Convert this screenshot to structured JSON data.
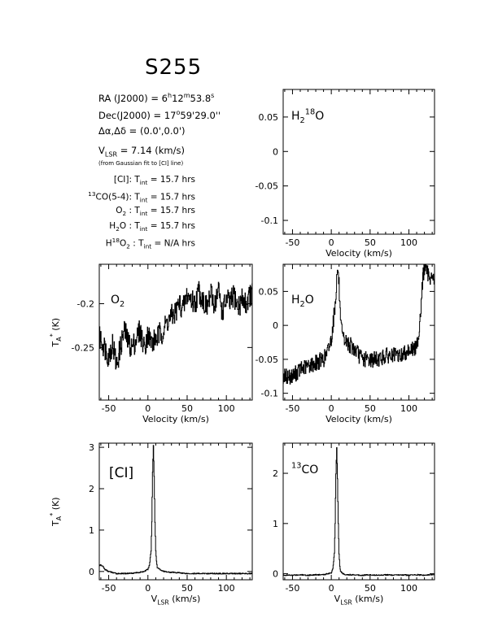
{
  "source": {
    "name": "S255",
    "ra": [
      "RA (J2000) = 6",
      "h",
      "12",
      "m",
      "53.8",
      "s"
    ],
    "dec": [
      "Dec(J2000) = 17",
      "o",
      "59'29.0''"
    ],
    "offset": "Δα,Δδ = (0.0',0.0')",
    "vlsr": [
      "V",
      "LSR",
      " = 7.14 (km/s)"
    ],
    "vlsr_note": "(from Gaussian fit to [CI] line)"
  },
  "integration": [
    {
      "pre": "",
      "sup": "",
      "mid": "[CI]",
      "sub": "",
      "post": ": T",
      "tsub": "int",
      "val": " = 15.7 hrs"
    },
    {
      "pre": "",
      "sup": "13",
      "mid": "CO(5-4)",
      "sub": "",
      "post": ": T",
      "tsub": "int",
      "val": " = 15.7 hrs"
    },
    {
      "pre": "",
      "sup": "",
      "mid": "O",
      "sub": "2",
      "post": " : T",
      "tsub": "int",
      "val": " = 15.7 hrs"
    },
    {
      "pre": "",
      "sup": "",
      "mid": "H",
      "sub": "2",
      "post": "O : T",
      "tsub": "int",
      "val": " = 15.7 hrs"
    },
    {
      "pre": "H",
      "sup": "18",
      "mid": "O",
      "sub": "2",
      "post": " : T",
      "tsub": "int",
      "val": " = N/A hrs"
    }
  ],
  "chart_data": [
    {
      "type": "line",
      "label": [
        "H",
        "2",
        "18",
        "O"
      ],
      "xlabel": [
        "Velocity (km/s)"
      ],
      "ylabel": [],
      "xlim": [
        -62,
        133
      ],
      "ylim": [
        -0.12,
        0.09
      ],
      "xticks": [
        -50,
        0,
        50,
        100
      ],
      "yticks": [
        0.05,
        0,
        -0.05,
        -0.1
      ],
      "series": []
    },
    {
      "type": "line",
      "label": [
        "O",
        "2"
      ],
      "xlabel": [
        "Velocity (km/s)"
      ],
      "ylabel": [
        "T",
        "A",
        "*",
        " (K)"
      ],
      "xlim": [
        -62,
        133
      ],
      "ylim": [
        -0.31,
        -0.155
      ],
      "xticks": [
        -50,
        0,
        50,
        100
      ],
      "yticks": [
        -0.2,
        -0.25
      ],
      "series": [
        {
          "x": [
            -60,
            -55,
            -50,
            -45,
            -40,
            -35,
            -30,
            -25,
            -20,
            -15,
            -10,
            -5,
            0,
            5,
            10,
            15,
            20,
            25,
            30,
            35,
            40,
            45,
            50,
            55,
            60,
            65,
            70,
            75,
            80,
            85,
            90,
            95,
            100,
            105,
            110,
            115,
            120,
            125,
            130
          ],
          "y": [
            -0.24,
            -0.25,
            -0.26,
            -0.245,
            -0.27,
            -0.25,
            -0.23,
            -0.245,
            -0.25,
            -0.24,
            -0.23,
            -0.25,
            -0.235,
            -0.245,
            -0.24,
            -0.235,
            -0.23,
            -0.22,
            -0.215,
            -0.21,
            -0.2,
            -0.205,
            -0.19,
            -0.195,
            -0.2,
            -0.185,
            -0.195,
            -0.205,
            -0.19,
            -0.2,
            -0.185,
            -0.21,
            -0.195,
            -0.2,
            -0.19,
            -0.205,
            -0.195,
            -0.2,
            -0.19
          ]
        }
      ]
    },
    {
      "type": "line",
      "label": [
        "H",
        "2",
        "",
        "O"
      ],
      "xlabel": [
        "Velocity (km/s)"
      ],
      "ylabel": [],
      "xlim": [
        -62,
        133
      ],
      "ylim": [
        -0.11,
        0.09
      ],
      "xticks": [
        -50,
        0,
        50,
        100
      ],
      "yticks": [
        0.05,
        0,
        -0.05,
        -0.1
      ],
      "series": [
        {
          "x": [
            -60,
            -50,
            -40,
            -30,
            -20,
            -10,
            -5,
            0,
            5,
            8,
            10,
            12,
            15,
            20,
            30,
            40,
            50,
            60,
            70,
            80,
            90,
            100,
            108,
            110,
            113,
            115,
            118,
            120,
            125,
            130
          ],
          "y": [
            -0.075,
            -0.075,
            -0.065,
            -0.06,
            -0.055,
            -0.05,
            -0.04,
            -0.02,
            0.03,
            0.085,
            0.06,
            0.0,
            -0.02,
            -0.025,
            -0.035,
            -0.05,
            -0.05,
            -0.05,
            -0.045,
            -0.045,
            -0.045,
            -0.035,
            -0.035,
            -0.03,
            -0.01,
            0.02,
            0.07,
            0.085,
            0.075,
            0.07
          ]
        }
      ]
    },
    {
      "type": "line",
      "label": [
        "[CI]",
        "",
        "",
        ""
      ],
      "xlabel": [
        "V",
        "LSR",
        " (km/s)"
      ],
      "ylabel": [
        "T",
        "A",
        "*",
        " (K)"
      ],
      "xlim": [
        -62,
        133
      ],
      "ylim": [
        -0.2,
        3.1
      ],
      "xticks": [
        -50,
        0,
        50,
        100
      ],
      "yticks": [
        3,
        2,
        1,
        0
      ],
      "series": [
        {
          "x": [
            -62,
            -60,
            -57,
            -55,
            -52,
            -50,
            -40,
            -30,
            -20,
            -10,
            -5,
            0,
            2,
            4,
            5,
            6,
            7,
            8,
            9,
            10,
            11,
            12,
            15,
            20,
            30,
            40,
            50,
            60,
            70,
            80,
            90,
            100,
            110,
            120,
            130
          ],
          "y": [
            0.15,
            0.15,
            0.12,
            0.05,
            0.02,
            0.0,
            -0.05,
            -0.05,
            -0.04,
            -0.02,
            0.0,
            0.05,
            0.15,
            0.5,
            1.2,
            2.4,
            3.05,
            2.3,
            1.2,
            0.5,
            0.25,
            0.1,
            0.05,
            0.0,
            -0.02,
            -0.03,
            -0.05,
            -0.05,
            -0.05,
            -0.05,
            -0.05,
            -0.05,
            -0.05,
            -0.05,
            -0.05
          ]
        }
      ]
    },
    {
      "type": "line",
      "label": [
        "",
        "",
        "13",
        "CO"
      ],
      "xlabel": [
        "V",
        "LSR",
        " (km/s)"
      ],
      "ylabel": [],
      "xlim": [
        -62,
        133
      ],
      "ylim": [
        -0.12,
        2.6
      ],
      "xticks": [
        -50,
        0,
        50,
        100
      ],
      "yticks": [
        2,
        1,
        0
      ],
      "series": [
        {
          "x": [
            -62,
            -50,
            -40,
            -30,
            -20,
            -10,
            -5,
            0,
            2,
            4,
            5,
            6,
            7,
            8,
            9,
            10,
            11,
            12,
            15,
            20,
            30,
            40,
            50,
            60,
            70,
            80,
            90,
            100,
            110,
            120,
            130
          ],
          "y": [
            -0.03,
            -0.03,
            -0.02,
            -0.03,
            -0.02,
            -0.02,
            0.0,
            0.02,
            0.1,
            0.4,
            1.0,
            2.0,
            2.5,
            1.9,
            1.0,
            0.4,
            0.15,
            0.05,
            0.0,
            -0.02,
            -0.02,
            -0.03,
            -0.02,
            -0.03,
            -0.02,
            -0.03,
            -0.02,
            -0.03,
            -0.02,
            -0.03,
            -0.02
          ]
        }
      ]
    }
  ]
}
